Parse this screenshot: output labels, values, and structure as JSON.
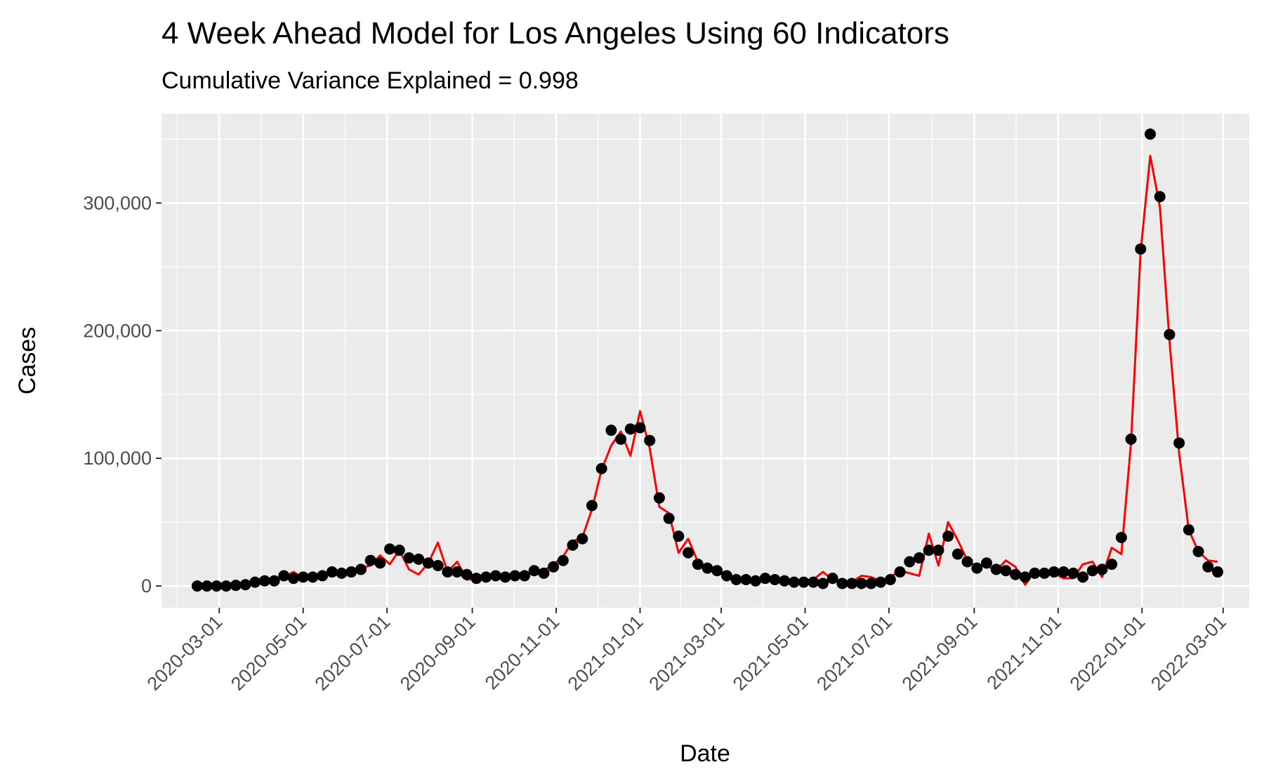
{
  "chart_data": {
    "type": "line",
    "title": "4 Week Ahead Model for Los Angeles Using 60 Indicators",
    "subtitle": "Cumulative Variance Explained = 0.998",
    "xlabel": "Date",
    "ylabel": "Cases",
    "x_type": "date",
    "xlim": [
      "2020-01-19",
      "2022-03-20"
    ],
    "ylim": [
      -17000,
      370000
    ],
    "x_ticks": [
      "2020-03-01",
      "2020-05-01",
      "2020-07-01",
      "2020-09-01",
      "2020-11-01",
      "2021-01-01",
      "2021-03-01",
      "2021-05-01",
      "2021-07-01",
      "2021-09-01",
      "2021-11-01",
      "2022-01-01",
      "2022-03-01"
    ],
    "y_ticks": [
      0,
      100000,
      200000,
      300000
    ],
    "y_tick_labels": [
      "0",
      "100,000",
      "200,000",
      "300,000"
    ],
    "grid": true,
    "legend": "none",
    "colors": {
      "panel": "#ebebeb",
      "grid": "#ffffff",
      "observed": "#000000",
      "predicted": "#ff0000",
      "tick": "#333333"
    },
    "dates": [
      "2020-02-14",
      "2020-02-21",
      "2020-02-28",
      "2020-03-06",
      "2020-03-13",
      "2020-03-20",
      "2020-03-27",
      "2020-04-03",
      "2020-04-10",
      "2020-04-17",
      "2020-04-24",
      "2020-05-01",
      "2020-05-08",
      "2020-05-15",
      "2020-05-22",
      "2020-05-29",
      "2020-06-05",
      "2020-06-12",
      "2020-06-19",
      "2020-06-26",
      "2020-07-03",
      "2020-07-10",
      "2020-07-17",
      "2020-07-24",
      "2020-07-31",
      "2020-08-07",
      "2020-08-14",
      "2020-08-21",
      "2020-08-28",
      "2020-09-04",
      "2020-09-11",
      "2020-09-18",
      "2020-09-25",
      "2020-10-02",
      "2020-10-09",
      "2020-10-16",
      "2020-10-23",
      "2020-10-30",
      "2020-11-06",
      "2020-11-13",
      "2020-11-20",
      "2020-11-27",
      "2020-12-04",
      "2020-12-11",
      "2020-12-18",
      "2020-12-25",
      "2021-01-01",
      "2021-01-08",
      "2021-01-15",
      "2021-01-22",
      "2021-01-29",
      "2021-02-05",
      "2021-02-12",
      "2021-02-19",
      "2021-02-26",
      "2021-03-05",
      "2021-03-12",
      "2021-03-19",
      "2021-03-26",
      "2021-04-02",
      "2021-04-09",
      "2021-04-16",
      "2021-04-23",
      "2021-04-30",
      "2021-05-07",
      "2021-05-14",
      "2021-05-21",
      "2021-05-28",
      "2021-06-04",
      "2021-06-11",
      "2021-06-18",
      "2021-06-25",
      "2021-07-02",
      "2021-07-09",
      "2021-07-16",
      "2021-07-23",
      "2021-07-30",
      "2021-08-06",
      "2021-08-13",
      "2021-08-20",
      "2021-08-27",
      "2021-09-03",
      "2021-09-10",
      "2021-09-17",
      "2021-09-24",
      "2021-10-01",
      "2021-10-08",
      "2021-10-15",
      "2021-10-22",
      "2021-10-29",
      "2021-11-05",
      "2021-11-12",
      "2021-11-19",
      "2021-11-26",
      "2021-12-03",
      "2021-12-10",
      "2021-12-17",
      "2021-12-24",
      "2021-12-31",
      "2022-01-07",
      "2022-01-14",
      "2022-01-21",
      "2022-01-28",
      "2022-02-04",
      "2022-02-11",
      "2022-02-18",
      "2022-02-25"
    ],
    "series": [
      {
        "values": [
          0,
          0,
          0,
          0,
          500,
          1000,
          3000,
          4000,
          4000,
          8000,
          6000,
          7000,
          7000,
          8000,
          11000,
          10000,
          11000,
          13000,
          20000,
          18000,
          29000,
          28000,
          22000,
          21000,
          18000,
          16000,
          11000,
          11000,
          9000,
          6000,
          7000,
          8000,
          7000,
          8000,
          8000,
          12000,
          10000,
          15000,
          20000,
          32000,
          37000,
          63000,
          92000,
          122000,
          115000,
          123000,
          124000,
          114000,
          69000,
          53000,
          39000,
          26000,
          17000,
          14000,
          12000,
          8000,
          5000,
          5000,
          4000,
          6000,
          5000,
          4000,
          3000,
          3000,
          3000,
          2000,
          6000,
          2000,
          2000,
          2000,
          2000,
          3000,
          5000,
          11000,
          19000,
          22000,
          28000,
          28000,
          39000,
          25000,
          19000,
          14000,
          18000,
          13000,
          12000,
          9000,
          7000,
          10000,
          10000,
          11000,
          11000,
          10000,
          7000,
          12000,
          13000,
          17000,
          38000,
          115000,
          264000,
          354000,
          305000,
          197000,
          112000,
          44000,
          27000,
          15000,
          11000
        ]
      },
      {
        "values": [
          0,
          0,
          0,
          1000,
          1500,
          2000,
          3000,
          4000,
          5000,
          7000,
          11000,
          6000,
          7000,
          9000,
          10000,
          10000,
          13000,
          14000,
          16000,
          24000,
          17000,
          28000,
          13000,
          9000,
          18000,
          34000,
          11000,
          19000,
          5000,
          6000,
          8000,
          7000,
          8000,
          9000,
          11000,
          9000,
          12000,
          17000,
          23000,
          35000,
          38000,
          60000,
          91000,
          110000,
          121000,
          102000,
          137000,
          108000,
          62000,
          57000,
          26000,
          37000,
          19000,
          12000,
          11000,
          9000,
          6000,
          5000,
          5000,
          4000,
          4000,
          3000,
          3000,
          2000,
          5000,
          11000,
          5000,
          2000,
          3000,
          8000,
          7000,
          4000,
          7000,
          12000,
          10000,
          8000,
          41000,
          16000,
          50000,
          36000,
          20000,
          15000,
          16000,
          12000,
          20000,
          15000,
          1000,
          12000,
          9000,
          10000,
          6000,
          6000,
          17000,
          19000,
          7000,
          30000,
          25000,
          112000,
          262000,
          337000,
          297000,
          192000,
          104000,
          44000,
          27000,
          20000,
          19000
        ]
      }
    ]
  }
}
